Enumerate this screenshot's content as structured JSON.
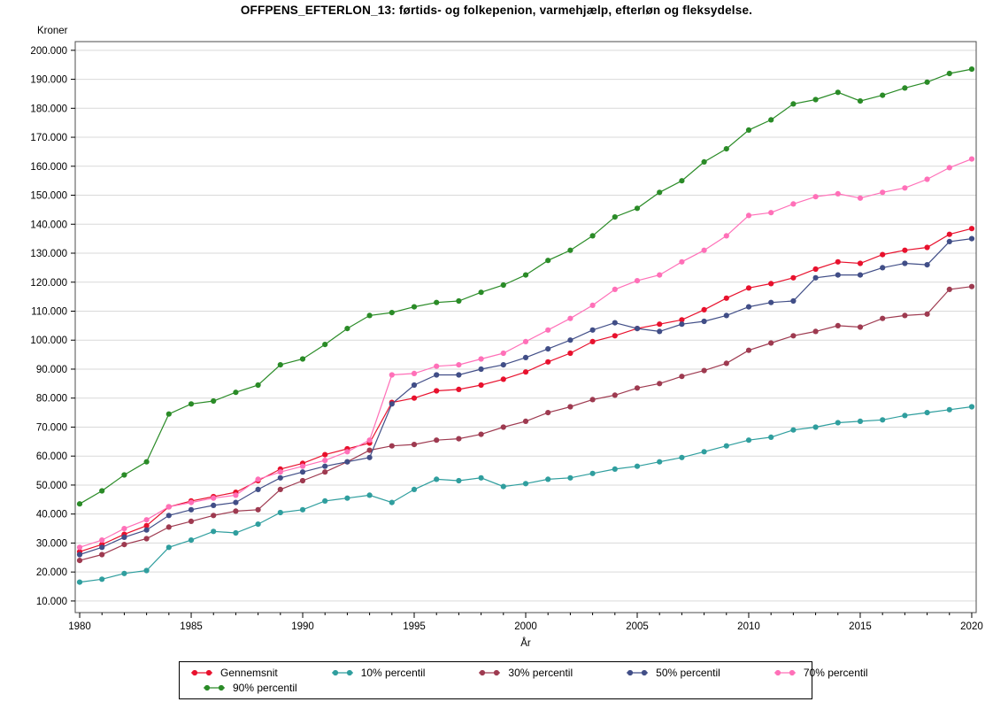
{
  "chart_data": {
    "type": "line",
    "title": "OFFPENS_EFTERLON_13:  førtids- og folkepenion, varmehjælp, efterløn og fleksydelse.",
    "ylabel": "Kroner",
    "xlabel": "År",
    "grid": "horizontal",
    "legend_position": "bottom",
    "xlim": [
      1979.8,
      2020.2
    ],
    "ylim": [
      6000,
      203000
    ],
    "x_major_ticks": [
      1980,
      1985,
      1990,
      1995,
      2000,
      2005,
      2010,
      2015,
      2020
    ],
    "y_ticks": [
      10000,
      20000,
      30000,
      40000,
      50000,
      60000,
      70000,
      80000,
      90000,
      100000,
      110000,
      120000,
      130000,
      140000,
      150000,
      160000,
      170000,
      180000,
      190000,
      200000
    ],
    "y_tick_labels": [
      "10.000",
      "20.000",
      "30.000",
      "40.000",
      "50.000",
      "60.000",
      "70.000",
      "80.000",
      "90.000",
      "100.000",
      "110.000",
      "120.000",
      "130.000",
      "140.000",
      "150.000",
      "160.000",
      "170.000",
      "180.000",
      "190.000",
      "200.000"
    ],
    "x": [
      1980,
      1981,
      1982,
      1983,
      1984,
      1985,
      1986,
      1987,
      1988,
      1989,
      1990,
      1991,
      1992,
      1993,
      1994,
      1995,
      1996,
      1997,
      1998,
      1999,
      2000,
      2001,
      2002,
      2003,
      2004,
      2005,
      2006,
      2007,
      2008,
      2009,
      2010,
      2011,
      2012,
      2013,
      2014,
      2015,
      2016,
      2017,
      2018,
      2019,
      2020
    ],
    "series": [
      {
        "name": "Gennemsnit",
        "color": "#e8112d",
        "values": [
          27000,
          29500,
          33000,
          36000,
          42500,
          44500,
          46000,
          47500,
          51500,
          55500,
          57500,
          60500,
          62500,
          64500,
          78500,
          80000,
          82500,
          83000,
          84500,
          86500,
          89000,
          92500,
          95500,
          99500,
          101500,
          104000,
          105500,
          107000,
          110500,
          114500,
          118000,
          119500,
          121500,
          124500,
          127000,
          126500,
          129500,
          131000,
          132000,
          136500,
          138500
        ]
      },
      {
        "name": "10% percentil",
        "color": "#2f9e9e",
        "values": [
          16500,
          17500,
          19500,
          20500,
          28500,
          31000,
          34000,
          33500,
          36500,
          40500,
          41500,
          44500,
          45500,
          46500,
          44000,
          48500,
          52000,
          51500,
          52500,
          49500,
          50500,
          52000,
          52500,
          54000,
          55500,
          56500,
          58000,
          59500,
          61500,
          63500,
          65500,
          66500,
          69000,
          70000,
          71500,
          72000,
          72500,
          74000,
          75000,
          76000,
          77000
        ]
      },
      {
        "name": "30% percentil",
        "color": "#9e3a50",
        "values": [
          24000,
          26000,
          29500,
          31500,
          35500,
          37500,
          39500,
          41000,
          41500,
          48500,
          51500,
          54500,
          58000,
          62000,
          63500,
          64000,
          65500,
          66000,
          67500,
          70000,
          72000,
          75000,
          77000,
          79500,
          81000,
          83500,
          85000,
          87500,
          89500,
          92000,
          96500,
          99000,
          101500,
          103000,
          105000,
          104500,
          107500,
          108500,
          109000,
          117500,
          118500
        ]
      },
      {
        "name": "50% percentil",
        "color": "#414e87",
        "values": [
          26000,
          28500,
          32000,
          34500,
          39500,
          41500,
          43000,
          44000,
          48500,
          52500,
          54500,
          56500,
          58000,
          59500,
          78000,
          84500,
          88000,
          88000,
          90000,
          91500,
          94000,
          97000,
          100000,
          103500,
          106000,
          104000,
          103000,
          105500,
          106500,
          108500,
          111500,
          113000,
          113500,
          121500,
          122500,
          122500,
          125000,
          126500,
          126000,
          134000,
          135000
        ]
      },
      {
        "name": "70% percentil",
        "color": "#ff70b8",
        "values": [
          28500,
          31000,
          35000,
          38000,
          42500,
          44000,
          45500,
          46500,
          52000,
          54500,
          56500,
          58500,
          61500,
          65500,
          88000,
          88500,
          91000,
          91500,
          93500,
          95500,
          99500,
          103500,
          107500,
          112000,
          117500,
          120500,
          122500,
          127000,
          131000,
          136000,
          143000,
          144000,
          147000,
          149500,
          150500,
          149000,
          151000,
          152500,
          155500,
          159500,
          162500
        ]
      },
      {
        "name": "90% percentil",
        "color": "#2a8b27",
        "values": [
          43500,
          48000,
          53500,
          58000,
          74500,
          78000,
          79000,
          82000,
          84500,
          91500,
          93500,
          98500,
          104000,
          108500,
          109500,
          111500,
          113000,
          113500,
          116500,
          119000,
          122500,
          127500,
          131000,
          136000,
          142500,
          145500,
          151000,
          155000,
          161500,
          166000,
          172500,
          176000,
          181500,
          183000,
          185500,
          182500,
          184500,
          187000,
          189000,
          192000,
          193500
        ]
      }
    ],
    "style": {
      "grid_color": "#d9d9d9",
      "axis_color": "#4d4d4d",
      "text_color": "#000000",
      "background": "#ffffff"
    },
    "legend_rows": [
      [
        "Gennemsnit",
        "10% percentil",
        "30% percentil",
        "50% percentil",
        "70% percentil"
      ],
      [
        "90% percentil"
      ]
    ]
  }
}
